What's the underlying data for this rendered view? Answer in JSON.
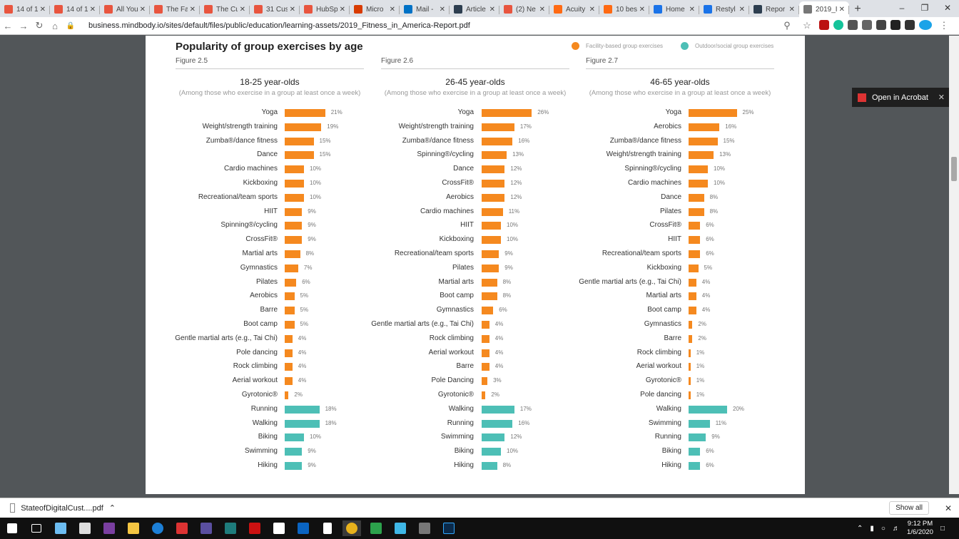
{
  "browser": {
    "tabs": [
      {
        "title": "14 of 1",
        "color": "#e8553f"
      },
      {
        "title": "14 of 1",
        "color": "#e8553f"
      },
      {
        "title": "All You",
        "color": "#e8553f"
      },
      {
        "title": "The Fa",
        "color": "#e8553f"
      },
      {
        "title": "The Cu",
        "color": "#e8553f"
      },
      {
        "title": "31 Cus",
        "color": "#e8553f"
      },
      {
        "title": "HubSp",
        "color": "#e8553f"
      },
      {
        "title": "Micro",
        "color": "#d83b01"
      },
      {
        "title": "Mail -",
        "color": "#0072c6"
      },
      {
        "title": "Article",
        "color": "#2d3e50"
      },
      {
        "title": "(2) Ne",
        "color": "#e8553f"
      },
      {
        "title": "Acuity",
        "color": "#ff6a13"
      },
      {
        "title": "10 bes",
        "color": "#ff6a13"
      },
      {
        "title": "Home",
        "color": "#1a73e8"
      },
      {
        "title": "Restyl",
        "color": "#1a73e8"
      },
      {
        "title": "Repor",
        "color": "#2d3e50"
      },
      {
        "title": "2019_I",
        "color": "#777777",
        "active": true
      }
    ],
    "url": "business.mindbody.io/sites/default/files/public/education/learning-assets/2019_Fitness_in_America-Report.pdf"
  },
  "acrobat_button": "Open in Acrobat",
  "report": {
    "title": "Popularity of group exercises by age",
    "legend": [
      {
        "label": "Facility-based group exercises",
        "color": "#f5891f"
      },
      {
        "label": "Outdoor/social group exercises",
        "color": "#4dbfb6"
      }
    ]
  },
  "chart_data": [
    {
      "type": "bar",
      "figure": "Figure 2.5",
      "title": "18-25 year-olds",
      "subtitle": "(Among those who exercise in a group at least once a week)",
      "categories": [
        "Yoga",
        "Weight/strength training",
        "Zumba®/dance fitness",
        "Dance",
        "Cardio machines",
        "Kickboxing",
        "Recreational/team sports",
        "HIIT",
        "Spinning®/cycling",
        "CrossFit®",
        "Martial arts",
        "Gymnastics",
        "Pilates",
        "Aerobics",
        "Barre",
        "Boot camp",
        "Gentle martial arts (e.g., Tai Chi)",
        "Pole dancing",
        "Rock climbing",
        "Aerial workout",
        "Gyrotonic®",
        "Running",
        "Walking",
        "Biking",
        "Swimming",
        "Hiking"
      ],
      "values": [
        21,
        19,
        15,
        15,
        10,
        10,
        10,
        9,
        9,
        9,
        8,
        7,
        6,
        5,
        5,
        5,
        4,
        4,
        4,
        4,
        2,
        18,
        18,
        10,
        9,
        9
      ],
      "labels": [
        "21%",
        "19%",
        "15%",
        "15%",
        "10%",
        "10%",
        "10%",
        "9%",
        "9%",
        "9%",
        "8%",
        "7%",
        "6%",
        "5%",
        "5%",
        "5%",
        "4%",
        "4%",
        "4%",
        "4%",
        "2%",
        "18%",
        "18%",
        "10%",
        "9%",
        "9%"
      ],
      "group": [
        "f",
        "f",
        "f",
        "f",
        "f",
        "f",
        "f",
        "f",
        "f",
        "f",
        "f",
        "f",
        "f",
        "f",
        "f",
        "f",
        "f",
        "f",
        "f",
        "f",
        "f",
        "o",
        "o",
        "o",
        "o",
        "o"
      ]
    },
    {
      "type": "bar",
      "figure": "Figure 2.6",
      "title": "26-45 year-olds",
      "subtitle": "(Among those who exercise in a group at least once a week)",
      "categories": [
        "Yoga",
        "Weight/strength training",
        "Zumba®/dance fitness",
        "Spinning®/cycling",
        "Dance",
        "CrossFit®",
        "Aerobics",
        "Cardio machines",
        "HIIT",
        "Kickboxing",
        "Recreational/team sports",
        "Pilates",
        "Martial arts",
        "Boot camp",
        "Gymnastics",
        "Gentle martial arts (e.g., Tai Chi)",
        "Rock climbing",
        "Aerial workout",
        "Barre",
        "Pole Dancing",
        "Gyrotonic®",
        "Walking",
        "Running",
        "Swimming",
        "Biking",
        "Hiking"
      ],
      "values": [
        26,
        17,
        16,
        13,
        12,
        12,
        12,
        11,
        10,
        10,
        9,
        9,
        8,
        8,
        6,
        4,
        4,
        4,
        4,
        3,
        2,
        17,
        16,
        12,
        10,
        8
      ],
      "labels": [
        "26%",
        "17%",
        "16%",
        "13%",
        "12%",
        "12%",
        "12%",
        "11%",
        "10%",
        "10%",
        "9%",
        "9%",
        "8%",
        "8%",
        "6%",
        "4%",
        "4%",
        "4%",
        "4%",
        "3%",
        "2%",
        "17%",
        "16%",
        "12%",
        "10%",
        "8%"
      ],
      "group": [
        "f",
        "f",
        "f",
        "f",
        "f",
        "f",
        "f",
        "f",
        "f",
        "f",
        "f",
        "f",
        "f",
        "f",
        "f",
        "f",
        "f",
        "f",
        "f",
        "f",
        "f",
        "o",
        "o",
        "o",
        "o",
        "o"
      ]
    },
    {
      "type": "bar",
      "figure": "Figure 2.7",
      "title": "46-65 year-olds",
      "subtitle": "(Among those who exercise in a group at least once a week)",
      "categories": [
        "Yoga",
        "Aerobics",
        "Zumba®/dance fitness",
        "Weight/strength training",
        "Spinning®/cycling",
        "Cardio machines",
        "Dance",
        "Pilates",
        "CrossFit®",
        "HIIT",
        "Recreational/team sports",
        "Kickboxing",
        "Gentle martial arts (e.g., Tai Chi)",
        "Martial arts",
        "Boot camp",
        "Gymnastics",
        "Barre",
        "Rock climbing",
        "Aerial workout",
        "Gyrotonic®",
        "Pole dancing",
        "Walking",
        "Swimming",
        "Running",
        "Biking",
        "Hiking"
      ],
      "values": [
        25,
        16,
        15,
        13,
        10,
        10,
        8,
        8,
        6,
        6,
        6,
        5,
        4,
        4,
        4,
        2,
        2,
        1,
        1,
        1,
        1,
        20,
        11,
        9,
        6,
        6
      ],
      "labels": [
        "25%",
        "16%",
        "15%",
        "13%",
        "10%",
        "10%",
        "8%",
        "8%",
        "6%",
        "6%",
        "6%",
        "5%",
        "4%",
        "4%",
        "4%",
        "2%",
        "2%",
        "1%",
        "1%",
        "1%",
        "1%",
        "20%",
        "11%",
        "9%",
        "6%",
        "6%"
      ],
      "group": [
        "f",
        "f",
        "f",
        "f",
        "f",
        "f",
        "f",
        "f",
        "f",
        "f",
        "f",
        "f",
        "f",
        "f",
        "f",
        "f",
        "f",
        "f",
        "f",
        "f",
        "f",
        "o",
        "o",
        "o",
        "o",
        "o"
      ]
    }
  ],
  "download": {
    "file": "StateofDigitalCust....pdf",
    "show_all": "Show all"
  },
  "clock": {
    "time": "9:12 PM",
    "date": "1/6/2020"
  }
}
